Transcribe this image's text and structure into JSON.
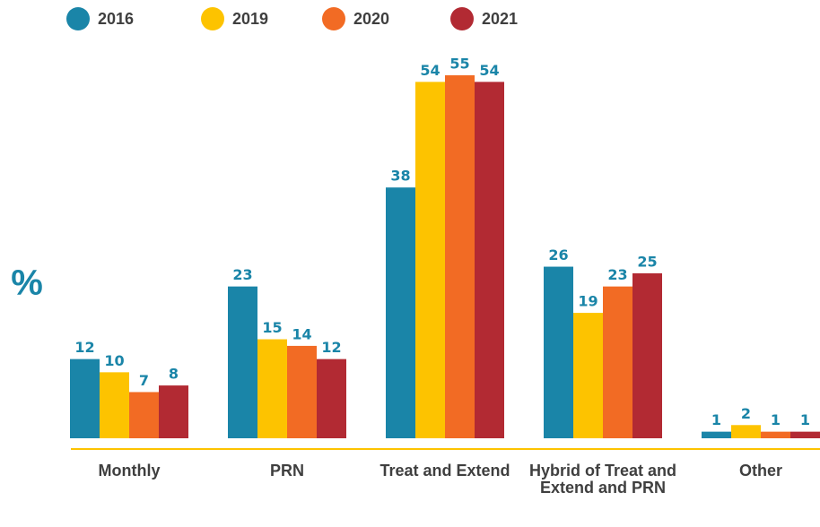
{
  "chart_data": {
    "type": "bar",
    "y_label": "%",
    "categories": [
      "Monthly",
      "PRN",
      "Treat and Extend",
      "Hybrid of Treat and Extend and PRN",
      "Other"
    ],
    "series": [
      {
        "name": "2016",
        "color": "#1a85a8",
        "values": [
          12,
          23,
          38,
          26,
          1
        ]
      },
      {
        "name": "2019",
        "color": "#fdc300",
        "values": [
          10,
          15,
          54,
          19,
          2
        ]
      },
      {
        "name": "2020",
        "color": "#f26b24",
        "values": [
          7,
          14,
          55,
          23,
          1
        ]
      },
      {
        "name": "2021",
        "color": "#b22a33",
        "values": [
          8,
          12,
          54,
          25,
          1
        ]
      }
    ],
    "ylim": [
      0,
      55
    ]
  }
}
